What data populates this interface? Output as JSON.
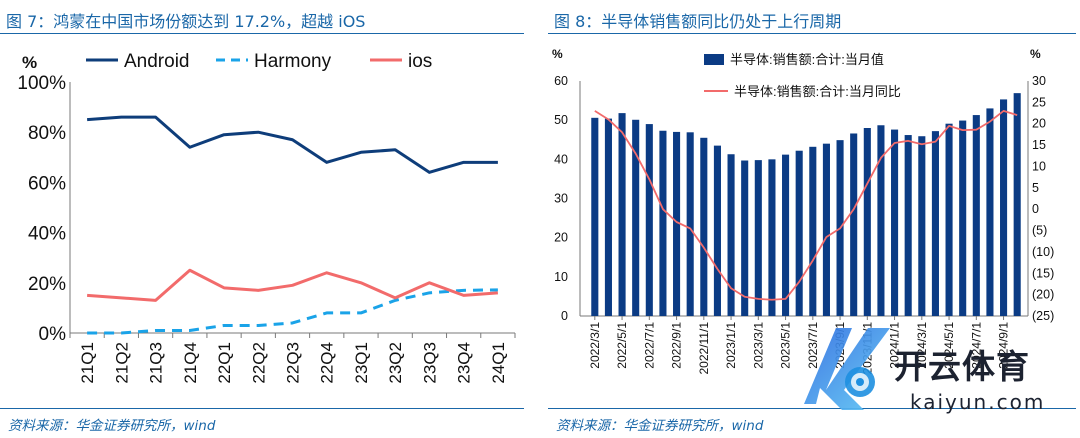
{
  "left": {
    "title": "图 7：鸿蒙在中国市场份额达到 17.2%，超越 iOS",
    "source": "资料来源：华金证券研究所，wind"
  },
  "right": {
    "title": "图 8：半导体销售额同比仍处于上行周期",
    "source": "资料来源：华金证券研究所，wind"
  },
  "watermark": {
    "title": "开云体育",
    "url": "kaiyun.com"
  },
  "chart_data": [
    {
      "type": "line",
      "ylabel": "%",
      "ylim": [
        0,
        100
      ],
      "yticks": [
        0,
        20,
        40,
        60,
        80,
        100
      ],
      "ytick_labels": [
        "0%",
        "20%",
        "40%",
        "60%",
        "80%",
        "100%"
      ],
      "categories": [
        "21Q1",
        "21Q2",
        "21Q3",
        "21Q4",
        "22Q1",
        "22Q2",
        "22Q3",
        "22Q4",
        "23Q1",
        "23Q2",
        "23Q3",
        "23Q4",
        "24Q1"
      ],
      "legend_position": "top",
      "series": [
        {
          "name": "Android",
          "color": "#0e3d7a",
          "dash": "solid",
          "values": [
            85,
            86,
            86,
            74,
            79,
            80,
            77,
            68,
            72,
            73,
            64,
            68,
            68
          ]
        },
        {
          "name": "Harmony",
          "color": "#1aa3e8",
          "dash": "dashed",
          "values": [
            0,
            0,
            1,
            1,
            3,
            3,
            4,
            8,
            8,
            13,
            16,
            17,
            17.2
          ]
        },
        {
          "name": "ios",
          "color": "#f26b6b",
          "dash": "solid",
          "values": [
            15,
            14,
            13,
            25,
            18,
            17,
            19,
            24,
            20,
            14,
            20,
            15,
            16
          ]
        }
      ]
    },
    {
      "type": "bar",
      "ylabel_left": "%",
      "ylabel_right": "%",
      "ylim_left": [
        0,
        60
      ],
      "yticks_left": [
        0,
        10,
        20,
        30,
        40,
        50,
        60
      ],
      "ylim_right": [
        -25,
        30
      ],
      "yticks_right": [
        30,
        25,
        20,
        15,
        10,
        5,
        0,
        -5,
        -10,
        -15,
        -20,
        -25
      ],
      "ytick_labels_right": [
        "30",
        "25",
        "20",
        "15",
        "10",
        "5",
        "0",
        "(5)",
        "(10)",
        "(15)",
        "(20)",
        "(25)"
      ],
      "x_tick_labels": [
        "2022/3/1",
        "2022/5/1",
        "2022/7/1",
        "2022/9/1",
        "2022/11/1",
        "2023/1/1",
        "2023/3/1",
        "2023/5/1",
        "2023/7/1",
        "2023/9/1",
        "2023/11/1",
        "2024/1/1",
        "2024/3/1",
        "2024/5/1",
        "2024/7/1",
        "2024/9/1"
      ],
      "months": [
        "2022/3",
        "2022/4",
        "2022/5",
        "2022/6",
        "2022/7",
        "2022/8",
        "2022/9",
        "2022/10",
        "2022/11",
        "2022/12",
        "2023/1",
        "2023/2",
        "2023/3",
        "2023/4",
        "2023/5",
        "2023/6",
        "2023/7",
        "2023/8",
        "2023/9",
        "2023/10",
        "2023/11",
        "2023/12",
        "2024/1",
        "2024/2",
        "2024/3",
        "2024/4",
        "2024/5",
        "2024/6",
        "2024/7",
        "2024/8",
        "2024/9",
        "2024/10"
      ],
      "legend_position": "top",
      "series": [
        {
          "name": "半导体:销售额:合计:当月值",
          "type": "bar",
          "axis": "left",
          "color": "#0b3b84",
          "values": [
            50.6,
            50.4,
            51.8,
            50.1,
            49.0,
            47.3,
            47.0,
            46.9,
            45.5,
            43.5,
            41.3,
            39.7,
            39.8,
            40.0,
            41.2,
            42.2,
            43.2,
            44.0,
            44.9,
            46.6,
            48.0,
            48.7,
            47.6,
            46.2,
            45.9,
            47.2,
            49.1,
            49.9,
            51.3,
            53.0,
            55.3,
            56.9
          ]
        },
        {
          "name": "半导体:销售额:合计:当月同比",
          "type": "line",
          "axis": "right",
          "color": "#f26b6b",
          "values": [
            23.0,
            21.0,
            18.0,
            13.0,
            7.0,
            0.0,
            -3.0,
            -4.5,
            -9.0,
            -14.0,
            -18.5,
            -20.5,
            -21.0,
            -21.2,
            -21.0,
            -17.0,
            -12.0,
            -6.5,
            -4.5,
            0.0,
            6.0,
            12.0,
            15.5,
            16.0,
            15.2,
            15.8,
            19.5,
            18.5,
            18.6,
            20.5,
            23.0,
            22.0
          ]
        }
      ]
    }
  ]
}
